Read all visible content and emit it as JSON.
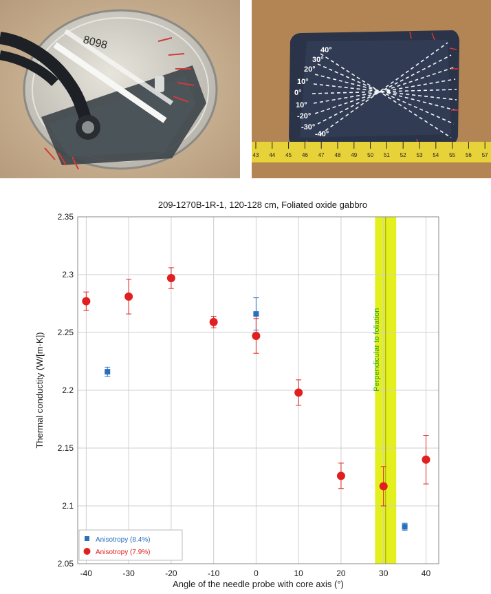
{
  "photos": {
    "left_stamp": "8098",
    "right_angle_labels": [
      "40°",
      "30°",
      "20°",
      "10°",
      "0°",
      "10°",
      "-20°",
      "-30°",
      "-40°"
    ],
    "ruler_labels": [
      "43",
      "44",
      "45",
      "46",
      "47",
      "48",
      "49",
      "50",
      "51",
      "52",
      "53",
      "54",
      "55",
      "56",
      "57"
    ]
  },
  "chart_data": {
    "type": "scatter",
    "title": "209-1270B-1R-1, 120-128 cm, Foliated oxide gabbro",
    "xlabel": "Angle of the needle probe with core axis (°)",
    "ylabel": "Thermal conductity (W/[m·K])",
    "xlim": [
      -42,
      43
    ],
    "ylim": [
      2.05,
      2.35
    ],
    "xticks": [
      "-40",
      "-30",
      "-20",
      "-10",
      "0",
      "10",
      "20",
      "30",
      "40"
    ],
    "yticks": [
      "2.05",
      "2.1",
      "2.15",
      "2.2",
      "2.25",
      "2.3",
      "2.35"
    ],
    "grid": true,
    "legend_position": "bottom-left",
    "band": {
      "x": [
        28,
        33
      ],
      "center": 30.5,
      "label": "Perpendicular to foliation",
      "color": "#e3f01e",
      "label_color": "#2ca02c"
    },
    "series": [
      {
        "name": "Anisotropy (8.4%)",
        "marker": "square",
        "color": "#2a6fbb",
        "points": [
          {
            "x": -35,
            "y": 2.216,
            "err": 0.004
          },
          {
            "x": 0,
            "y": 2.266,
            "err": 0.014
          },
          {
            "x": 35,
            "y": 2.082,
            "err": 0.003
          }
        ]
      },
      {
        "name": "Anisotropy (7.9%)",
        "marker": "circle",
        "color": "#e02020",
        "points": [
          {
            "x": -40,
            "y": 2.277,
            "err": 0.008
          },
          {
            "x": -30,
            "y": 2.281,
            "err": 0.015
          },
          {
            "x": -20,
            "y": 2.297,
            "err": 0.009
          },
          {
            "x": -10,
            "y": 2.259,
            "err": 0.005
          },
          {
            "x": 0,
            "y": 2.247,
            "err": 0.015
          },
          {
            "x": 10,
            "y": 2.198,
            "err": 0.011
          },
          {
            "x": 20,
            "y": 2.126,
            "err": 0.011
          },
          {
            "x": 30,
            "y": 2.117,
            "err": 0.017
          },
          {
            "x": 40,
            "y": 2.14,
            "err": 0.021
          }
        ]
      }
    ]
  }
}
